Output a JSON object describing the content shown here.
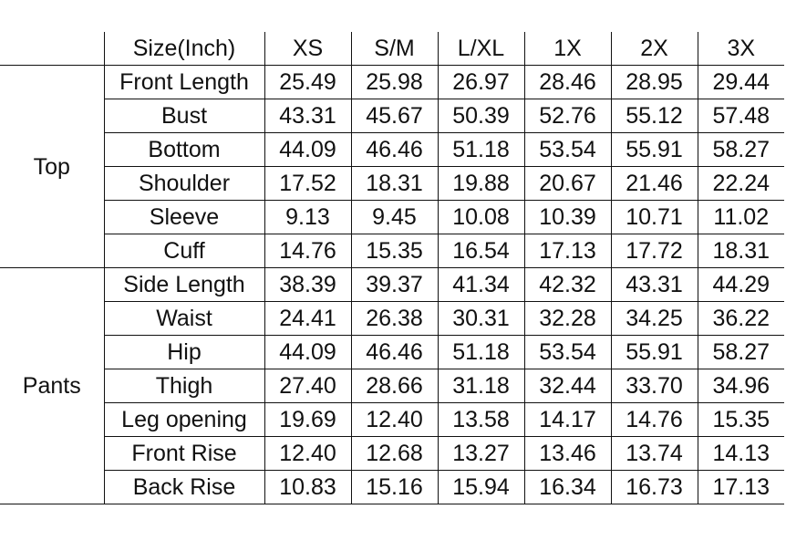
{
  "table": {
    "header": [
      "Size(Inch)",
      "XS",
      "S/M",
      "L/XL",
      "1X",
      "2X",
      "3X"
    ],
    "groups": [
      {
        "name": "Top",
        "rows": [
          {
            "measure": "Front Length",
            "values": [
              "25.49",
              "25.98",
              "26.97",
              "28.46",
              "28.95",
              "29.44"
            ]
          },
          {
            "measure": "Bust",
            "values": [
              "43.31",
              "45.67",
              "50.39",
              "52.76",
              "55.12",
              "57.48"
            ]
          },
          {
            "measure": "Bottom",
            "values": [
              "44.09",
              "46.46",
              "51.18",
              "53.54",
              "55.91",
              "58.27"
            ]
          },
          {
            "measure": "Shoulder",
            "values": [
              "17.52",
              "18.31",
              "19.88",
              "20.67",
              "21.46",
              "22.24"
            ]
          },
          {
            "measure": "Sleeve",
            "values": [
              "9.13",
              "9.45",
              "10.08",
              "10.39",
              "10.71",
              "11.02"
            ]
          },
          {
            "measure": "Cuff",
            "values": [
              "14.76",
              "15.35",
              "16.54",
              "17.13",
              "17.72",
              "18.31"
            ]
          }
        ]
      },
      {
        "name": "Pants",
        "rows": [
          {
            "measure": "Side Length",
            "values": [
              "38.39",
              "39.37",
              "41.34",
              "42.32",
              "43.31",
              "44.29"
            ]
          },
          {
            "measure": "Waist",
            "values": [
              "24.41",
              "26.38",
              "30.31",
              "32.28",
              "34.25",
              "36.22"
            ]
          },
          {
            "measure": "Hip",
            "values": [
              "44.09",
              "46.46",
              "51.18",
              "53.54",
              "55.91",
              "58.27"
            ]
          },
          {
            "measure": "Thigh",
            "values": [
              "27.40",
              "28.66",
              "31.18",
              "32.44",
              "33.70",
              "34.96"
            ]
          },
          {
            "measure": "Leg opening",
            "values": [
              "19.69",
              "12.40",
              "13.58",
              "14.17",
              "14.76",
              "15.35"
            ]
          },
          {
            "measure": "Front Rise",
            "values": [
              "12.40",
              "12.68",
              "13.27",
              "13.46",
              "13.74",
              "14.13"
            ]
          },
          {
            "measure": "Back Rise",
            "values": [
              "10.83",
              "15.16",
              "15.94",
              "16.34",
              "16.73",
              "17.13"
            ]
          }
        ]
      }
    ]
  }
}
